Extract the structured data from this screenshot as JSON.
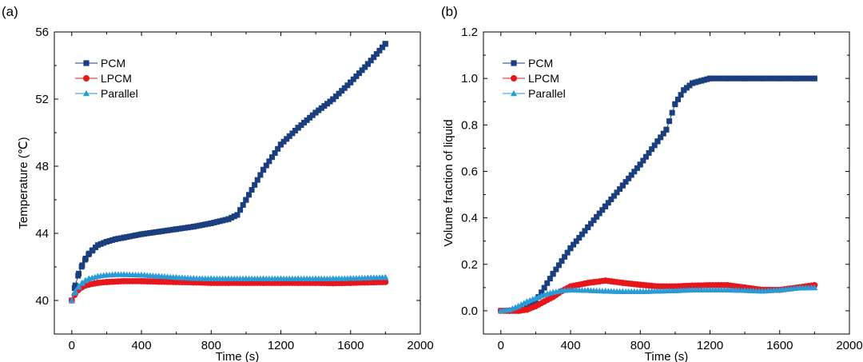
{
  "chart_data": [
    {
      "type": "line",
      "panel_label": "(a)",
      "xlabel": "Time (s)",
      "ylabel": "Temperature (℃)",
      "xlim": [
        -100,
        2000
      ],
      "ylim": [
        38,
        56
      ],
      "xticks": [
        0,
        400,
        800,
        1200,
        1600,
        2000
      ],
      "yticks": [
        40,
        44,
        48,
        52,
        56
      ],
      "x_tick_labels": [
        "0",
        "400",
        "800",
        "1200",
        "1600",
        "2000"
      ],
      "y_tick_labels": [
        "40",
        "44",
        "48",
        "52",
        "56"
      ],
      "legend_position": "top-left",
      "grid": false,
      "series": [
        {
          "name": "PCM",
          "marker": "square",
          "color": "#1b3f7e",
          "x": [
            0,
            20,
            40,
            60,
            80,
            100,
            120,
            150,
            200,
            250,
            300,
            400,
            500,
            600,
            700,
            800,
            900,
            950,
            1000,
            1100,
            1200,
            1300,
            1400,
            1500,
            1600,
            1700,
            1800
          ],
          "y": [
            40.0,
            40.9,
            41.6,
            42.1,
            42.5,
            42.8,
            43.0,
            43.3,
            43.5,
            43.65,
            43.75,
            43.95,
            44.1,
            44.25,
            44.4,
            44.6,
            44.85,
            45.1,
            46.0,
            47.8,
            49.3,
            50.3,
            51.2,
            52.0,
            53.0,
            54.1,
            55.3
          ]
        },
        {
          "name": "LPCM",
          "marker": "circle",
          "color": "#e8161b",
          "x": [
            0,
            20,
            40,
            60,
            80,
            100,
            150,
            200,
            300,
            400,
            500,
            600,
            700,
            800,
            900,
            1000,
            1100,
            1200,
            1300,
            1400,
            1500,
            1600,
            1700,
            1800
          ],
          "y": [
            40.0,
            40.4,
            40.65,
            40.8,
            40.9,
            40.95,
            41.05,
            41.1,
            41.15,
            41.15,
            41.12,
            41.1,
            41.08,
            41.05,
            41.05,
            41.05,
            41.05,
            41.05,
            41.05,
            41.05,
            41.03,
            41.05,
            41.08,
            41.1
          ]
        },
        {
          "name": "Parallel",
          "marker": "triangle",
          "color": "#2a9bd6",
          "x": [
            0,
            20,
            40,
            60,
            80,
            100,
            150,
            200,
            250,
            300,
            400,
            500,
            600,
            700,
            800,
            900,
            1000,
            1100,
            1200,
            1300,
            1400,
            1500,
            1600,
            1700,
            1800
          ],
          "y": [
            40.0,
            40.55,
            40.85,
            41.05,
            41.2,
            41.3,
            41.45,
            41.52,
            41.55,
            41.55,
            41.52,
            41.45,
            41.38,
            41.32,
            41.3,
            41.3,
            41.3,
            41.3,
            41.3,
            41.3,
            41.3,
            41.3,
            41.32,
            41.35,
            41.38
          ]
        }
      ]
    },
    {
      "type": "line",
      "panel_label": "(b)",
      "xlabel": "Time (s)",
      "ylabel": "Volume fraction of  liquid",
      "xlim": [
        -100,
        2000
      ],
      "ylim": [
        -0.1,
        1.2
      ],
      "xticks": [
        0,
        400,
        800,
        1200,
        1600,
        2000
      ],
      "yticks": [
        0.0,
        0.2,
        0.4,
        0.6,
        0.8,
        1.0,
        1.2
      ],
      "x_tick_labels": [
        "0",
        "400",
        "800",
        "1200",
        "1600",
        "2000"
      ],
      "y_tick_labels": [
        "0.0",
        "0.2",
        "0.4",
        "0.6",
        "0.8",
        "1.0",
        "1.2"
      ],
      "legend_position": "top-left",
      "grid": false,
      "series": [
        {
          "name": "PCM",
          "marker": "square",
          "color": "#1b3f7e",
          "x": [
            0,
            50,
            100,
            150,
            200,
            300,
            400,
            500,
            600,
            700,
            800,
            900,
            950,
            1000,
            1050,
            1100,
            1150,
            1200,
            1300,
            1400,
            1500,
            1600,
            1700,
            1800
          ],
          "y": [
            0.0,
            0.0,
            0.0,
            0.01,
            0.04,
            0.16,
            0.27,
            0.36,
            0.45,
            0.54,
            0.63,
            0.73,
            0.78,
            0.89,
            0.95,
            0.98,
            0.99,
            1.0,
            1.0,
            1.0,
            1.0,
            1.0,
            1.0,
            1.0
          ]
        },
        {
          "name": "LPCM",
          "marker": "circle",
          "color": "#e8161b",
          "x": [
            0,
            50,
            100,
            150,
            200,
            250,
            300,
            350,
            400,
            500,
            600,
            700,
            800,
            900,
            1000,
            1100,
            1200,
            1300,
            1400,
            1500,
            1600,
            1700,
            1800
          ],
          "y": [
            0.0,
            0.0,
            0.0,
            0.005,
            0.02,
            0.04,
            0.06,
            0.085,
            0.105,
            0.12,
            0.13,
            0.12,
            0.112,
            0.105,
            0.105,
            0.108,
            0.11,
            0.11,
            0.1,
            0.09,
            0.09,
            0.1,
            0.11
          ]
        },
        {
          "name": "Parallel",
          "marker": "triangle",
          "color": "#2a9bd6",
          "x": [
            0,
            50,
            100,
            150,
            200,
            250,
            300,
            350,
            400,
            500,
            600,
            700,
            800,
            900,
            1000,
            1100,
            1200,
            1300,
            1400,
            1500,
            1600,
            1700,
            1800
          ],
          "y": [
            0.0,
            0.005,
            0.02,
            0.04,
            0.055,
            0.07,
            0.08,
            0.087,
            0.09,
            0.088,
            0.085,
            0.083,
            0.083,
            0.085,
            0.087,
            0.09,
            0.09,
            0.09,
            0.088,
            0.085,
            0.09,
            0.098,
            0.1
          ]
        }
      ]
    }
  ]
}
